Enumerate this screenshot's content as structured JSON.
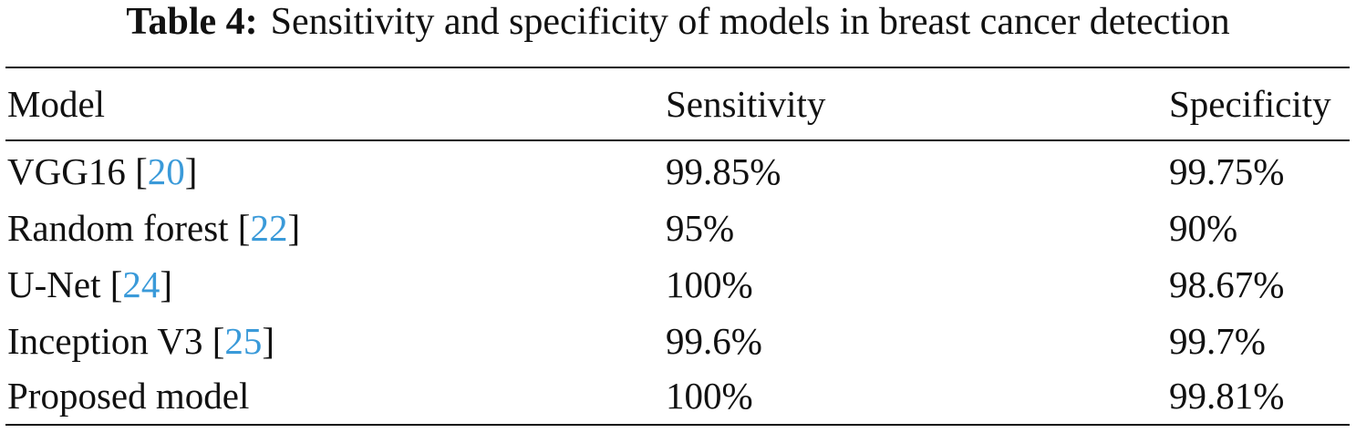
{
  "caption": {
    "label": "Table 4:",
    "text": "Sensitivity and specificity of models in breast cancer detection"
  },
  "table": {
    "headers": [
      "Model",
      "Sensitivity",
      "Specificity"
    ],
    "rows": [
      {
        "model": "VGG16",
        "ref": "20",
        "sensitivity": "99.85%",
        "specificity": "99.75%"
      },
      {
        "model": "Random forest",
        "ref": "22",
        "sensitivity": "95%",
        "specificity": "90%"
      },
      {
        "model": "U-Net",
        "ref": "24",
        "sensitivity": "100%",
        "specificity": "98.67%"
      },
      {
        "model": "Inception V3",
        "ref": "25",
        "sensitivity": "99.6%",
        "specificity": "99.7%"
      },
      {
        "model": "Proposed model",
        "ref": null,
        "sensitivity": "100%",
        "specificity": "99.81%"
      }
    ]
  },
  "colors": {
    "text": "#111111",
    "reference_link": "#3a9ad9"
  }
}
